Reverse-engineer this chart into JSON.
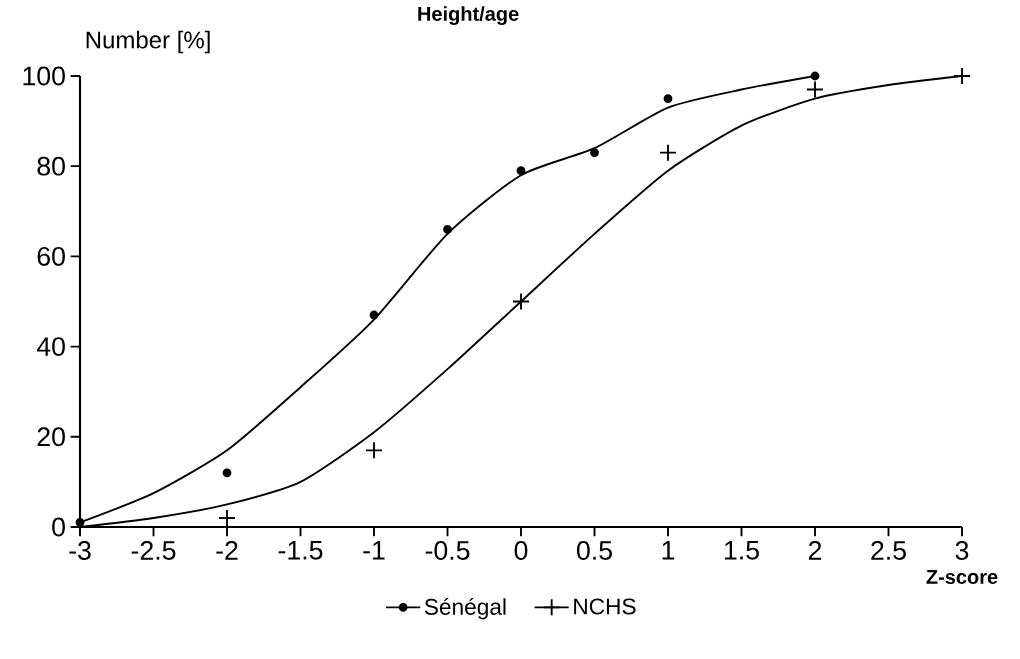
{
  "chart_data": {
    "type": "line",
    "title": "Height/age",
    "xlabel": "Z-score",
    "ylabel": "Number [%]",
    "xlim": [
      -3,
      3
    ],
    "ylim": [
      0,
      100
    ],
    "xticks": [
      -3,
      -2.5,
      -2,
      -1.5,
      -1,
      -0.5,
      0,
      0.5,
      1,
      1.5,
      2,
      2.5,
      3
    ],
    "yticks": [
      0,
      20,
      40,
      60,
      80,
      100
    ],
    "legend": "bottom",
    "series": [
      {
        "name": "Sénégal",
        "type": "scatter",
        "marker": "circle",
        "color": "#000000",
        "x": [
          -3,
          -2,
          -1,
          -0.5,
          0,
          0.5,
          1,
          2
        ],
        "values": [
          1,
          12,
          47,
          66,
          79,
          83,
          95,
          100
        ]
      },
      {
        "name": "NCHS",
        "type": "scatter",
        "marker": "cross",
        "color": "#000000",
        "x": [
          -3,
          -2,
          -1,
          0,
          1,
          2,
          3
        ],
        "values": [
          0,
          2,
          17,
          50,
          83,
          97,
          100
        ]
      },
      {
        "color": "#000000",
        "x": [
          -3,
          -2.5,
          -2,
          -1.5,
          -1,
          -0.5,
          0,
          0.5,
          1,
          1.5,
          2
        ],
        "values": [
          1,
          7.5,
          17,
          31,
          46,
          65,
          78,
          84,
          93,
          97,
          100
        ]
      },
      {
        "color": "#000000",
        "x": [
          -3,
          -2.5,
          -2,
          -1.5,
          -1,
          -0.5,
          0,
          0.5,
          1,
          1.5,
          2,
          2.5,
          3
        ],
        "values": [
          0,
          2,
          5,
          10,
          21,
          35,
          50,
          65,
          79,
          89,
          95,
          98,
          100
        ]
      }
    ]
  }
}
